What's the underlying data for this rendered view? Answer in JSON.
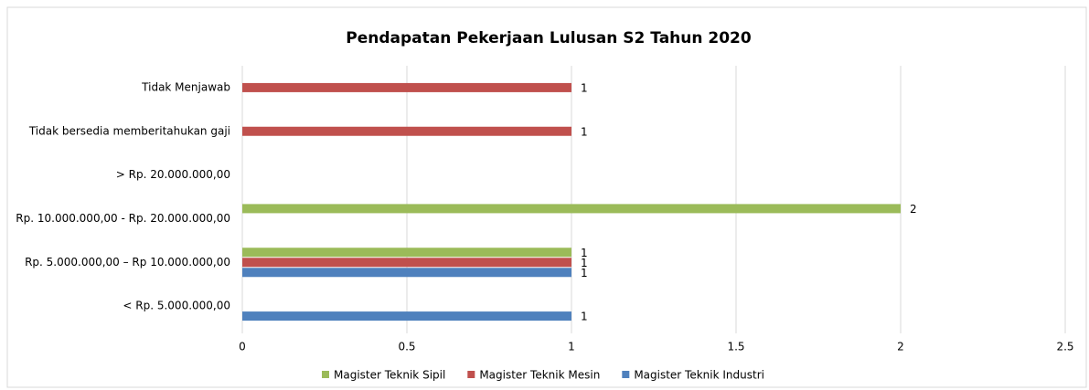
{
  "chart_data": {
    "type": "barh",
    "title": "Pendapatan Pekerjaan Lulusan S2 Tahun 2020",
    "categories": [
      "< Rp. 5.000.000,00",
      "Rp. 5.000.000,00 – Rp 10.000.000,00",
      "Rp. 10.000.000,00 - Rp. 20.000.000,00",
      "> Rp. 20.000.000,00",
      "Tidak bersedia memberitahukan gaji",
      "Tidak Menjawab"
    ],
    "series": [
      {
        "name": "Magister Teknik Sipil",
        "color": "#9bbb59",
        "values": [
          null,
          1,
          2,
          null,
          null,
          null
        ]
      },
      {
        "name": "Magister Teknik Mesin",
        "color": "#c0504d",
        "values": [
          null,
          1,
          null,
          null,
          1,
          1
        ]
      },
      {
        "name": "Magister Teknik Industri",
        "color": "#4f81bd",
        "values": [
          1,
          1,
          null,
          null,
          null,
          null
        ]
      }
    ],
    "xlim": [
      0,
      2.5
    ],
    "xticks": [
      0,
      0.5,
      1,
      1.5,
      2,
      2.5
    ],
    "grid": true
  }
}
